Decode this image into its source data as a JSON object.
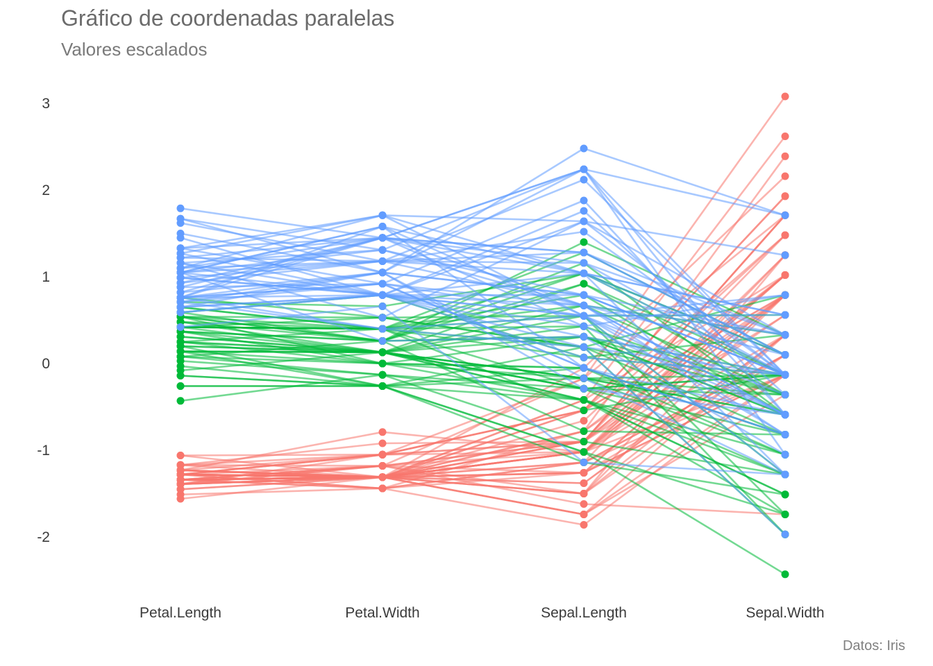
{
  "title": "Gráfico de coordenadas paralelas",
  "subtitle": "Valores escalados",
  "caption": "Datos: Iris",
  "colors": {
    "setosa": "#F8766D",
    "versicolor": "#00BA38",
    "virginica": "#619CFF"
  },
  "chart_data": {
    "type": "line",
    "variant": "parallel-coordinates",
    "title": "Gráfico de coordenadas paralelas",
    "subtitle": "Valores escalados",
    "caption": "Datos: Iris",
    "categories": [
      "Petal.Length",
      "Petal.Width",
      "Sepal.Length",
      "Sepal.Width"
    ],
    "ylim": [
      -2.6,
      3.2
    ],
    "yticks": [
      -2,
      -1,
      0,
      1,
      2,
      3
    ],
    "ytick_labels": [
      "-2",
      "-1",
      "0",
      "1",
      "2",
      "3"
    ],
    "grid": false,
    "legend": "none",
    "series": [
      {
        "group": "setosa",
        "color": "#F8766D",
        "lines": [
          [
            -1.34,
            -1.31,
            -0.9,
            1.02
          ],
          [
            -1.34,
            -1.31,
            -1.14,
            -0.13
          ],
          [
            -1.39,
            -1.31,
            -1.38,
            0.33
          ],
          [
            -1.28,
            -1.31,
            -1.5,
            0.1
          ],
          [
            -1.34,
            -1.31,
            -1.02,
            1.25
          ],
          [
            -1.17,
            -1.05,
            -0.54,
            1.93
          ],
          [
            -1.34,
            -1.18,
            -1.5,
            0.79
          ],
          [
            -1.28,
            -1.31,
            -1.02,
            0.79
          ],
          [
            -1.34,
            -1.31,
            -1.74,
            -0.36
          ],
          [
            -1.28,
            -1.44,
            -1.14,
            0.1
          ],
          [
            -1.28,
            -1.31,
            -0.54,
            1.48
          ],
          [
            -1.23,
            -1.31,
            -1.26,
            0.79
          ],
          [
            -1.34,
            -1.44,
            -1.26,
            -0.13
          ],
          [
            -1.51,
            -1.44,
            -1.86,
            -0.13
          ],
          [
            -1.45,
            -1.31,
            -0.05,
            2.16
          ],
          [
            -1.28,
            -1.05,
            -0.17,
            3.08
          ],
          [
            -1.39,
            -1.05,
            -0.54,
            1.93
          ],
          [
            -1.34,
            -1.18,
            -0.9,
            1.02
          ],
          [
            -1.17,
            -1.18,
            -0.17,
            1.71
          ],
          [
            -1.28,
            -1.18,
            -0.9,
            1.71
          ],
          [
            -1.17,
            -1.31,
            -0.54,
            0.79
          ],
          [
            -1.28,
            -1.05,
            -0.9,
            1.48
          ],
          [
            -1.56,
            -1.31,
            -1.5,
            1.25
          ],
          [
            -1.17,
            -0.92,
            -0.9,
            0.56
          ],
          [
            -1.06,
            -1.31,
            -1.26,
            0.79
          ],
          [
            -1.23,
            -1.31,
            -1.02,
            -0.13
          ],
          [
            -1.23,
            -1.05,
            -1.02,
            0.79
          ],
          [
            -1.28,
            -1.31,
            -0.78,
            1.02
          ],
          [
            -1.34,
            -1.31,
            -0.78,
            0.79
          ],
          [
            -1.23,
            -1.31,
            -1.38,
            0.33
          ],
          [
            -1.23,
            -1.31,
            -1.26,
            0.1
          ],
          [
            -1.28,
            -1.05,
            -0.54,
            0.79
          ],
          [
            -1.28,
            -1.44,
            -0.78,
            2.39
          ],
          [
            -1.34,
            -1.31,
            -0.42,
            2.62
          ],
          [
            -1.28,
            -1.31,
            -1.14,
            0.1
          ],
          [
            -1.45,
            -1.31,
            -1.02,
            0.33
          ],
          [
            -1.39,
            -1.31,
            -0.42,
            1.02
          ],
          [
            -1.34,
            -1.44,
            -1.14,
            1.25
          ],
          [
            -1.39,
            -1.31,
            -1.74,
            -0.13
          ],
          [
            -1.28,
            -1.31,
            -0.9,
            0.79
          ],
          [
            -1.39,
            -1.18,
            -1.02,
            1.02
          ],
          [
            -1.39,
            -1.18,
            -1.62,
            -1.74
          ],
          [
            -1.39,
            -1.31,
            -1.74,
            0.33
          ],
          [
            -1.23,
            -0.79,
            -1.02,
            1.02
          ],
          [
            -1.06,
            -1.05,
            -0.9,
            1.71
          ],
          [
            -1.34,
            -1.18,
            -1.26,
            -0.13
          ],
          [
            -1.23,
            -1.31,
            -0.9,
            1.71
          ],
          [
            -1.34,
            -1.31,
            -1.5,
            0.33
          ],
          [
            -1.28,
            -1.31,
            -0.66,
            1.48
          ],
          [
            -1.34,
            -1.31,
            -1.02,
            0.56
          ]
        ]
      },
      {
        "group": "versicolor",
        "color": "#00BA38",
        "lines": [
          [
            0.54,
            0.26,
            1.4,
            0.33
          ],
          [
            0.42,
            0.4,
            0.67,
            0.33
          ],
          [
            0.65,
            0.4,
            1.28,
            0.1
          ],
          [
            0.14,
            0.13,
            -0.42,
            -1.74
          ],
          [
            0.48,
            0.4,
            0.79,
            -0.59
          ],
          [
            0.42,
            0.13,
            -0.17,
            -0.59
          ],
          [
            0.54,
            0.53,
            0.55,
            0.56
          ],
          [
            -0.26,
            -0.26,
            -1.14,
            -1.51
          ],
          [
            0.48,
            0.13,
            0.92,
            -0.36
          ],
          [
            0.08,
            0.26,
            -0.78,
            -0.82
          ],
          [
            -0.14,
            -0.26,
            -1.02,
            -2.43
          ],
          [
            0.25,
            0.4,
            0.07,
            -0.13
          ],
          [
            0.14,
            -0.26,
            0.19,
            -1.97
          ],
          [
            0.54,
            0.26,
            0.31,
            -0.36
          ],
          [
            -0.08,
            0.13,
            -0.29,
            -0.36
          ],
          [
            0.37,
            0.26,
            1.04,
            0.1
          ],
          [
            0.42,
            0.4,
            -0.29,
            -0.13
          ],
          [
            0.2,
            -0.26,
            -0.05,
            -0.82
          ],
          [
            0.42,
            0.4,
            0.43,
            -1.97
          ],
          [
            0.08,
            -0.13,
            -0.29,
            -1.28
          ],
          [
            0.59,
            0.79,
            0.07,
            0.33
          ],
          [
            0.14,
            0.13,
            0.31,
            -0.59
          ],
          [
            0.65,
            0.4,
            0.55,
            -1.28
          ],
          [
            0.54,
            0.0,
            0.31,
            -0.59
          ],
          [
            0.31,
            0.13,
            0.67,
            -0.36
          ],
          [
            0.37,
            0.26,
            0.92,
            -0.13
          ],
          [
            0.59,
            0.26,
            1.16,
            -0.59
          ],
          [
            0.71,
            0.66,
            1.04,
            -0.13
          ],
          [
            0.42,
            0.4,
            0.19,
            -0.36
          ],
          [
            -0.14,
            -0.26,
            -0.17,
            -1.05
          ],
          [
            0.03,
            -0.13,
            -0.42,
            -1.51
          ],
          [
            -0.03,
            -0.26,
            -0.42,
            -1.51
          ],
          [
            0.08,
            0.0,
            -0.05,
            -0.82
          ],
          [
            0.76,
            0.53,
            0.19,
            -0.82
          ],
          [
            0.42,
            0.4,
            -0.54,
            -0.13
          ],
          [
            0.42,
            0.53,
            0.19,
            0.79
          ],
          [
            0.54,
            0.4,
            1.04,
            0.1
          ],
          [
            0.37,
            0.13,
            0.55,
            -1.74
          ],
          [
            0.2,
            0.13,
            -0.29,
            -0.13
          ],
          [
            0.14,
            0.13,
            -0.42,
            -1.28
          ],
          [
            0.37,
            0.0,
            -0.42,
            -1.05
          ],
          [
            0.48,
            0.26,
            0.31,
            -0.13
          ],
          [
            0.14,
            0.0,
            -0.05,
            -1.05
          ],
          [
            -0.26,
            -0.26,
            -1.02,
            -1.74
          ],
          [
            0.25,
            0.13,
            -0.29,
            -0.82
          ],
          [
            0.25,
            0.0,
            -0.17,
            -0.13
          ],
          [
            0.25,
            0.13,
            -0.17,
            -0.36
          ],
          [
            0.31,
            0.13,
            0.43,
            -0.36
          ],
          [
            -0.43,
            -0.13,
            -0.9,
            -1.28
          ],
          [
            0.2,
            0.13,
            -0.17,
            -0.59
          ]
        ]
      },
      {
        "group": "virginica",
        "color": "#619CFF",
        "lines": [
          [
            1.27,
            1.71,
            0.55,
            0.56
          ],
          [
            0.76,
            0.92,
            -0.05,
            -0.82
          ],
          [
            1.22,
            1.18,
            1.52,
            -0.13
          ],
          [
            1.05,
            0.79,
            0.55,
            -0.36
          ],
          [
            1.16,
            1.31,
            0.79,
            -0.13
          ],
          [
            1.62,
            1.18,
            2.12,
            -0.13
          ],
          [
            0.42,
            0.66,
            -1.14,
            -1.28
          ],
          [
            1.45,
            0.79,
            1.76,
            -0.36
          ],
          [
            1.16,
            0.79,
            1.04,
            -1.28
          ],
          [
            1.33,
            1.71,
            1.64,
            1.25
          ],
          [
            0.76,
            1.05,
            0.79,
            0.33
          ],
          [
            0.88,
            0.92,
            0.67,
            -0.82
          ],
          [
            0.99,
            1.18,
            1.16,
            -0.13
          ],
          [
            0.71,
            1.05,
            -0.17,
            -1.28
          ],
          [
            0.76,
            1.58,
            -0.05,
            -0.59
          ],
          [
            0.88,
            1.45,
            0.67,
            0.33
          ],
          [
            0.99,
            0.79,
            0.79,
            -0.13
          ],
          [
            1.67,
            1.31,
            2.24,
            1.71
          ],
          [
            1.79,
            1.45,
            2.24,
            -1.05
          ],
          [
            0.71,
            0.4,
            0.19,
            -1.97
          ],
          [
            1.1,
            1.45,
            1.28,
            0.33
          ],
          [
            0.65,
            1.05,
            -0.29,
            -0.59
          ],
          [
            1.67,
            1.05,
            2.24,
            -0.59
          ],
          [
            0.65,
            0.79,
            0.55,
            -0.82
          ],
          [
            1.1,
            1.18,
            1.04,
            0.56
          ],
          [
            1.27,
            0.79,
            1.64,
            0.33
          ],
          [
            0.59,
            0.79,
            0.43,
            -0.59
          ],
          [
            0.65,
            0.79,
            0.31,
            -0.13
          ],
          [
            1.05,
            1.18,
            0.67,
            -0.59
          ],
          [
            1.16,
            0.53,
            1.64,
            -0.13
          ],
          [
            1.33,
            0.92,
            1.88,
            -0.59
          ],
          [
            1.5,
            1.05,
            2.48,
            1.71
          ],
          [
            1.05,
            1.31,
            0.67,
            -0.59
          ],
          [
            0.76,
            0.4,
            0.55,
            -0.59
          ],
          [
            1.05,
            0.26,
            0.31,
            -1.05
          ],
          [
            1.33,
            1.45,
            2.24,
            -0.13
          ],
          [
            1.05,
            1.58,
            0.55,
            0.79
          ],
          [
            0.99,
            0.79,
            0.67,
            0.1
          ],
          [
            0.59,
            0.79,
            0.19,
            -0.13
          ],
          [
            0.93,
            1.18,
            1.28,
            0.1
          ],
          [
            1.05,
            1.58,
            1.04,
            0.1
          ],
          [
            0.76,
            1.45,
            1.28,
            0.1
          ],
          [
            0.76,
            0.92,
            -0.05,
            -0.82
          ],
          [
            1.22,
            1.45,
            1.16,
            0.33
          ],
          [
            1.1,
            1.71,
            1.04,
            0.56
          ],
          [
            0.82,
            1.45,
            1.04,
            -0.13
          ],
          [
            0.71,
            0.92,
            0.55,
            -1.28
          ],
          [
            0.82,
            1.05,
            0.79,
            -0.13
          ],
          [
            0.93,
            1.45,
            0.43,
            0.79
          ],
          [
            0.76,
            0.79,
            0.07,
            -0.13
          ]
        ]
      }
    ]
  }
}
